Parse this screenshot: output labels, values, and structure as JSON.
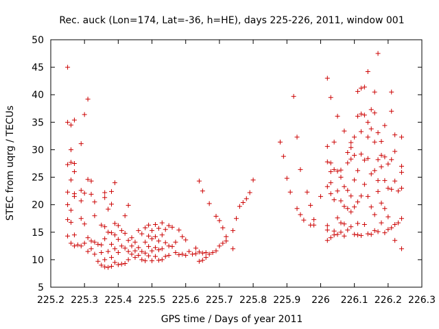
{
  "chart_data": {
    "type": "scatter",
    "title": "Rec. auck (Lon=174, Lat=-36, h=HE), days 225-226, 2011, window 001",
    "xlabel": "GPS time / Days of year 2011",
    "ylabel": "STEC from uqrg / TECUs",
    "xlim": [
      225.2,
      226.3
    ],
    "ylim": [
      5,
      50
    ],
    "xticks": [
      225.2,
      225.3,
      225.4,
      225.5,
      225.6,
      225.7,
      225.8,
      225.9,
      226,
      226.1,
      226.2,
      226.3
    ],
    "xtick_labels": [
      "225.2",
      "225.3",
      "225.4",
      "225.5",
      "225.6",
      "225.7",
      "225.8",
      "225.9",
      "226",
      "226.1",
      "226.2",
      "226.3"
    ],
    "yticks": [
      5,
      10,
      15,
      20,
      25,
      30,
      35,
      40,
      45,
      50
    ],
    "ytick_labels": [
      "5",
      "10",
      "15",
      "20",
      "25",
      "30",
      "35",
      "40",
      "45",
      "50"
    ],
    "grid": false,
    "marker": "plus",
    "color": "#cc0000",
    "series": [
      {
        "points": [
          [
            225.25,
            45.0
          ],
          [
            225.25,
            35.0
          ],
          [
            225.25,
            27.3
          ],
          [
            225.25,
            22.3
          ],
          [
            225.25,
            20.0
          ],
          [
            225.25,
            17.3
          ],
          [
            225.25,
            14.3
          ],
          [
            225.26,
            34.5
          ],
          [
            225.26,
            30.0
          ],
          [
            225.26,
            27.7
          ],
          [
            225.26,
            24.5
          ],
          [
            225.26,
            19.0
          ],
          [
            225.26,
            16.8
          ],
          [
            225.26,
            13.0
          ],
          [
            225.27,
            35.4
          ],
          [
            225.27,
            27.5
          ],
          [
            225.27,
            26.0
          ],
          [
            225.27,
            22.0
          ],
          [
            225.27,
            21.5
          ],
          [
            225.27,
            14.5
          ],
          [
            225.27,
            12.5
          ],
          [
            225.28,
            12.7
          ],
          [
            225.29,
            31.1
          ],
          [
            225.29,
            22.6
          ],
          [
            225.29,
            20.7
          ],
          [
            225.29,
            17.5
          ],
          [
            225.29,
            12.5
          ],
          [
            225.3,
            36.4
          ],
          [
            225.3,
            22.1
          ],
          [
            225.3,
            16.5
          ],
          [
            225.3,
            13.0
          ],
          [
            225.31,
            39.2
          ],
          [
            225.31,
            24.6
          ],
          [
            225.31,
            14.0
          ],
          [
            225.31,
            11.5
          ],
          [
            225.32,
            24.3
          ],
          [
            225.32,
            21.9
          ],
          [
            225.32,
            13.4
          ],
          [
            225.32,
            12.0
          ],
          [
            225.33,
            20.5
          ],
          [
            225.33,
            18.0
          ],
          [
            225.33,
            13.2
          ],
          [
            225.33,
            11.0
          ],
          [
            225.34,
            12.8
          ],
          [
            225.34,
            9.7
          ],
          [
            225.35,
            16.3
          ],
          [
            225.35,
            12.7
          ],
          [
            225.35,
            11.3
          ],
          [
            225.35,
            9.0
          ],
          [
            225.36,
            22.2
          ],
          [
            225.36,
            21.3
          ],
          [
            225.36,
            16.0
          ],
          [
            225.36,
            13.8
          ],
          [
            225.36,
            10.0
          ],
          [
            225.36,
            8.7
          ],
          [
            225.37,
            19.2
          ],
          [
            225.37,
            15.0
          ],
          [
            225.37,
            11.5
          ],
          [
            225.37,
            8.6
          ],
          [
            225.38,
            22.4
          ],
          [
            225.38,
            20.1
          ],
          [
            225.38,
            14.9
          ],
          [
            225.38,
            12.8
          ],
          [
            225.38,
            10.4
          ],
          [
            225.38,
            8.8
          ],
          [
            225.39,
            24.0
          ],
          [
            225.39,
            16.6
          ],
          [
            225.39,
            14.5
          ],
          [
            225.39,
            12.0
          ],
          [
            225.39,
            9.5
          ],
          [
            225.4,
            16.2
          ],
          [
            225.4,
            13.7
          ],
          [
            225.4,
            11.3
          ],
          [
            225.4,
            9.1
          ],
          [
            225.41,
            15.3
          ],
          [
            225.41,
            12.5
          ],
          [
            225.41,
            9.2
          ],
          [
            225.42,
            18.0
          ],
          [
            225.42,
            14.8
          ],
          [
            225.42,
            12.1
          ],
          [
            225.42,
            9.3
          ],
          [
            225.43,
            19.9
          ],
          [
            225.43,
            13.5
          ],
          [
            225.43,
            11.5
          ],
          [
            225.43,
            10.0
          ],
          [
            225.44,
            14.0
          ],
          [
            225.44,
            12.5
          ],
          [
            225.44,
            11.0
          ],
          [
            225.45,
            13.2
          ],
          [
            225.45,
            11.6
          ],
          [
            225.45,
            10.4
          ],
          [
            225.46,
            15.3
          ],
          [
            225.46,
            12.2
          ],
          [
            225.46,
            10.8
          ],
          [
            225.47,
            14.7
          ],
          [
            225.47,
            11.5
          ],
          [
            225.47,
            10.0
          ],
          [
            225.48,
            15.8
          ],
          [
            225.48,
            13.2
          ],
          [
            225.48,
            11.2
          ],
          [
            225.48,
            9.8
          ],
          [
            225.49,
            16.3
          ],
          [
            225.49,
            14.3
          ],
          [
            225.49,
            12.4
          ],
          [
            225.49,
            10.7
          ],
          [
            225.5,
            15.3
          ],
          [
            225.5,
            13.8
          ],
          [
            225.5,
            11.6
          ],
          [
            225.5,
            9.8
          ],
          [
            225.51,
            16.4
          ],
          [
            225.51,
            14.2
          ],
          [
            225.51,
            12.2
          ],
          [
            225.51,
            10.6
          ],
          [
            225.52,
            15.7
          ],
          [
            225.52,
            13.4
          ],
          [
            225.52,
            11.8
          ],
          [
            225.52,
            9.9
          ],
          [
            225.53,
            16.7
          ],
          [
            225.53,
            14.5
          ],
          [
            225.53,
            12.0
          ],
          [
            225.53,
            10.0
          ],
          [
            225.54,
            15.5
          ],
          [
            225.54,
            13.1
          ],
          [
            225.54,
            10.6
          ],
          [
            225.55,
            16.2
          ],
          [
            225.55,
            12.5
          ],
          [
            225.55,
            10.8
          ],
          [
            225.56,
            15.9
          ],
          [
            225.56,
            12.4
          ],
          [
            225.57,
            13.2
          ],
          [
            225.57,
            11.3
          ],
          [
            225.58,
            15.4
          ],
          [
            225.58,
            10.9
          ],
          [
            225.59,
            14.2
          ],
          [
            225.59,
            11.0
          ],
          [
            225.6,
            13.6
          ],
          [
            225.6,
            10.8
          ],
          [
            225.61,
            11.5
          ],
          [
            225.62,
            11.0
          ],
          [
            225.63,
            12.1
          ],
          [
            225.63,
            11.1
          ],
          [
            225.64,
            24.3
          ],
          [
            225.64,
            11.4
          ],
          [
            225.64,
            9.7
          ],
          [
            225.65,
            22.5
          ],
          [
            225.65,
            11.2
          ],
          [
            225.65,
            9.9
          ],
          [
            225.66,
            11.3
          ],
          [
            225.66,
            10.4
          ],
          [
            225.67,
            20.2
          ],
          [
            225.67,
            11.0
          ],
          [
            225.68,
            11.3
          ],
          [
            225.69,
            17.9
          ],
          [
            225.69,
            11.6
          ],
          [
            225.7,
            17.1
          ],
          [
            225.7,
            12.5
          ],
          [
            225.71,
            15.8
          ],
          [
            225.71,
            13.0
          ],
          [
            225.72,
            13.4
          ],
          [
            225.72,
            14.2
          ],
          [
            225.74,
            12.0
          ],
          [
            225.74,
            15.3
          ],
          [
            225.75,
            17.5
          ],
          [
            225.76,
            19.7
          ],
          [
            225.77,
            20.4
          ],
          [
            225.78,
            21.1
          ],
          [
            225.79,
            22.2
          ],
          [
            225.8,
            24.5
          ],
          [
            225.88,
            31.4
          ],
          [
            225.89,
            28.8
          ],
          [
            225.9,
            24.8
          ],
          [
            225.91,
            22.3
          ],
          [
            225.92,
            39.7
          ],
          [
            225.93,
            32.3
          ],
          [
            225.93,
            19.3
          ],
          [
            225.94,
            26.4
          ],
          [
            225.94,
            18.2
          ],
          [
            225.95,
            17.2
          ],
          [
            225.96,
            22.3
          ],
          [
            225.97,
            19.9
          ],
          [
            225.97,
            16.3
          ],
          [
            225.98,
            16.3
          ],
          [
            225.98,
            17.3
          ],
          [
            226.0,
            21.5
          ],
          [
            226.02,
            43.0
          ],
          [
            226.02,
            30.6
          ],
          [
            226.02,
            27.8
          ],
          [
            226.02,
            23.3
          ],
          [
            226.02,
            16.2
          ],
          [
            226.02,
            15.4
          ],
          [
            226.02,
            13.5
          ],
          [
            226.03,
            39.5
          ],
          [
            226.03,
            27.6
          ],
          [
            226.03,
            26.0
          ],
          [
            226.03,
            24.0
          ],
          [
            226.03,
            22.0
          ],
          [
            226.03,
            14.0
          ],
          [
            226.04,
            31.4
          ],
          [
            226.04,
            26.4
          ],
          [
            226.04,
            20.9
          ],
          [
            226.04,
            15.2
          ],
          [
            226.04,
            14.5
          ],
          [
            226.05,
            36.1
          ],
          [
            226.05,
            26.1
          ],
          [
            226.05,
            22.5
          ],
          [
            226.05,
            17.6
          ],
          [
            226.05,
            14.6
          ],
          [
            226.06,
            26.3
          ],
          [
            226.06,
            25.0
          ],
          [
            226.06,
            20.7
          ],
          [
            226.06,
            16.7
          ],
          [
            226.06,
            15.0
          ],
          [
            226.07,
            33.4
          ],
          [
            226.07,
            23.3
          ],
          [
            226.07,
            19.7
          ],
          [
            226.07,
            16.5
          ],
          [
            226.07,
            14.3
          ],
          [
            226.08,
            29.5
          ],
          [
            226.08,
            27.6
          ],
          [
            226.08,
            22.6
          ],
          [
            226.08,
            19.3
          ],
          [
            226.08,
            15.4
          ],
          [
            226.09,
            31.3
          ],
          [
            226.09,
            30.4
          ],
          [
            226.09,
            28.3
          ],
          [
            226.09,
            21.6
          ],
          [
            226.09,
            18.7
          ],
          [
            226.09,
            16.0
          ],
          [
            226.1,
            32.3
          ],
          [
            226.1,
            29.0
          ],
          [
            226.1,
            24.5
          ],
          [
            226.1,
            19.6
          ],
          [
            226.1,
            14.6
          ],
          [
            226.11,
            40.6
          ],
          [
            226.11,
            36.1
          ],
          [
            226.11,
            26.2
          ],
          [
            226.11,
            20.5
          ],
          [
            226.11,
            16.6
          ],
          [
            226.11,
            14.5
          ],
          [
            226.12,
            41.2
          ],
          [
            226.12,
            36.5
          ],
          [
            226.12,
            33.3
          ],
          [
            226.12,
            29.2
          ],
          [
            226.12,
            21.6
          ],
          [
            226.12,
            14.4
          ],
          [
            226.13,
            41.4
          ],
          [
            226.13,
            36.3
          ],
          [
            226.13,
            28.1
          ],
          [
            226.13,
            23.7
          ],
          [
            226.13,
            16.4
          ],
          [
            226.14,
            44.2
          ],
          [
            226.14,
            35.0
          ],
          [
            226.14,
            32.3
          ],
          [
            226.14,
            28.4
          ],
          [
            226.14,
            21.5
          ],
          [
            226.14,
            14.7
          ],
          [
            226.15,
            37.3
          ],
          [
            226.15,
            33.8
          ],
          [
            226.15,
            25.6
          ],
          [
            226.15,
            19.6
          ],
          [
            226.15,
            14.6
          ],
          [
            226.16,
            40.5
          ],
          [
            226.16,
            36.7
          ],
          [
            226.16,
            31.4
          ],
          [
            226.16,
            26.2
          ],
          [
            226.16,
            18.2
          ],
          [
            226.16,
            15.3
          ],
          [
            226.17,
            47.5
          ],
          [
            226.17,
            33.1
          ],
          [
            226.17,
            28.2
          ],
          [
            226.17,
            24.4
          ],
          [
            226.17,
            22.4
          ],
          [
            226.17,
            15.1
          ],
          [
            226.18,
            31.5
          ],
          [
            226.18,
            29.0
          ],
          [
            226.18,
            26.9
          ],
          [
            226.18,
            20.3
          ],
          [
            226.18,
            16.7
          ],
          [
            226.19,
            34.4
          ],
          [
            226.19,
            28.7
          ],
          [
            226.19,
            24.4
          ],
          [
            226.19,
            19.3
          ],
          [
            226.19,
            14.9
          ],
          [
            226.2,
            27.4
          ],
          [
            226.2,
            23.0
          ],
          [
            226.2,
            17.8
          ],
          [
            226.2,
            15.5
          ],
          [
            226.21,
            40.5
          ],
          [
            226.21,
            37.0
          ],
          [
            226.21,
            28.2
          ],
          [
            226.21,
            22.8
          ],
          [
            226.21,
            15.8
          ],
          [
            226.22,
            32.7
          ],
          [
            226.22,
            29.7
          ],
          [
            226.22,
            24.3
          ],
          [
            226.22,
            16.4
          ],
          [
            226.22,
            13.5
          ],
          [
            226.23,
            22.5
          ],
          [
            226.23,
            16.7
          ],
          [
            226.24,
            32.3
          ],
          [
            226.24,
            27.0
          ],
          [
            226.24,
            25.9
          ],
          [
            226.24,
            23.0
          ],
          [
            226.24,
            17.5
          ],
          [
            226.24,
            12.0
          ]
        ]
      }
    ]
  }
}
